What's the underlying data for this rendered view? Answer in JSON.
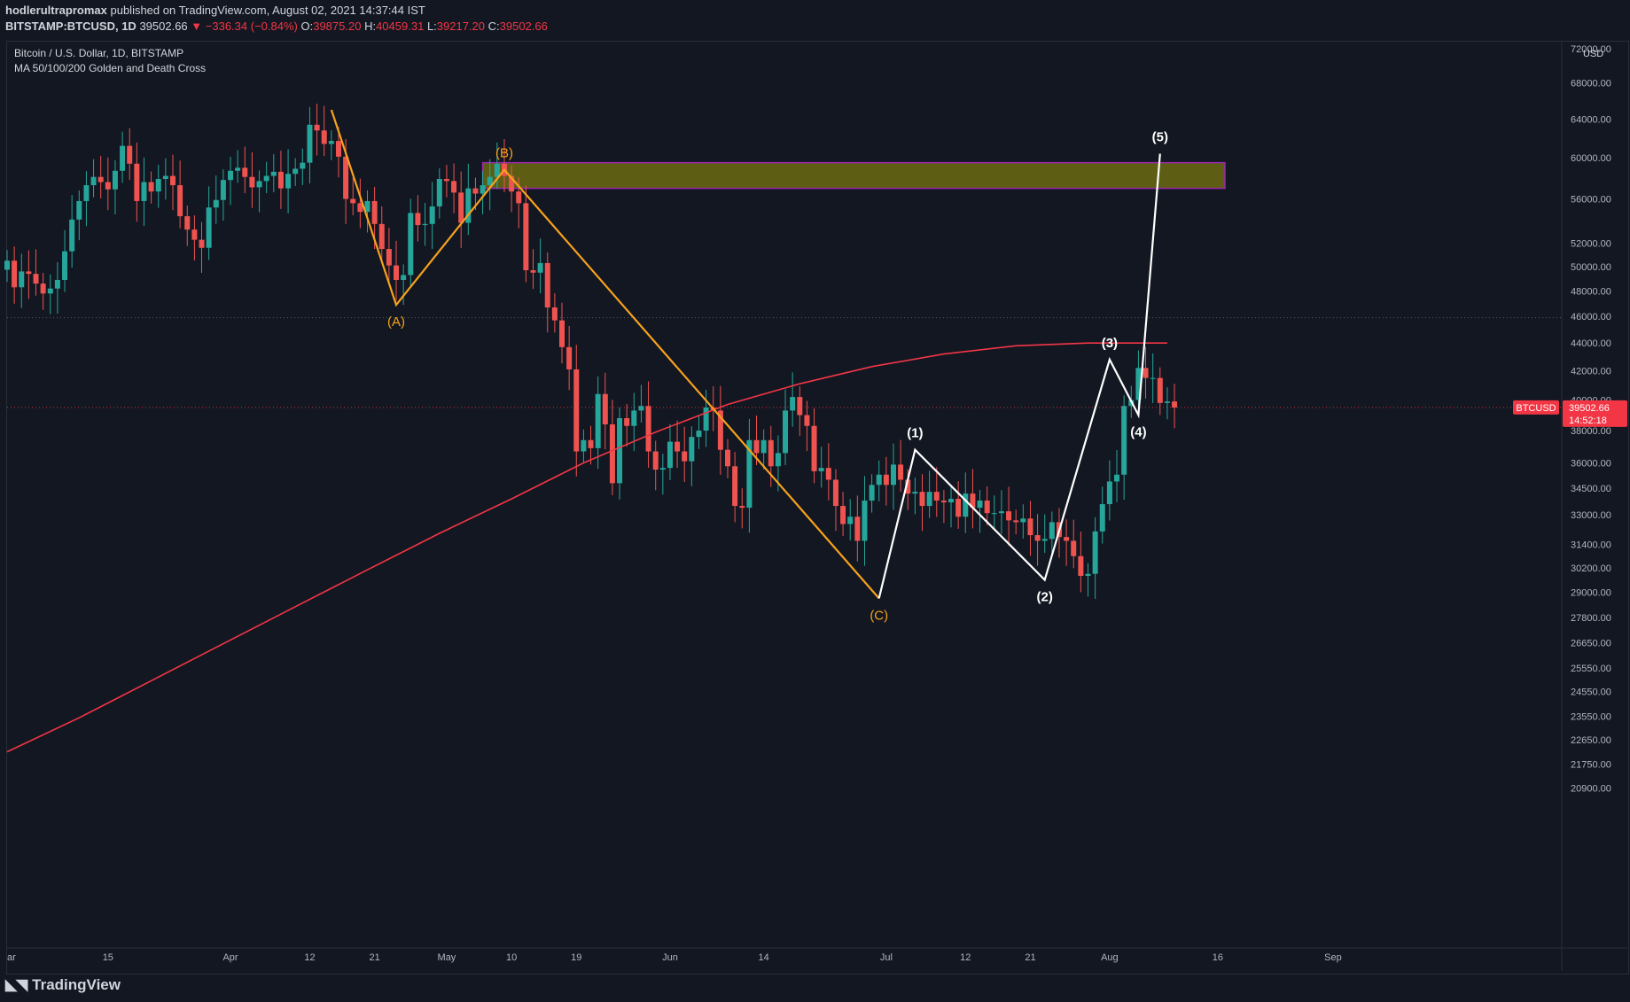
{
  "header": {
    "publisher": "hodlerultrapromax",
    "published_text": "published on TradingView.com, August 02, 2021 14:37:44 IST",
    "symbol": "BITSTAMP:BTCUSD, 1D",
    "last": "39502.66",
    "change": "▼ −336.34 (−0.84%)",
    "open_label": "O:",
    "open": "39875.20",
    "high_label": "H:",
    "high": "40459.31",
    "low_label": "L:",
    "low": "39217.20",
    "close_label": "C:",
    "close": "39502.66"
  },
  "footer": {
    "brand": "TradingView",
    "brand_icon": "tradingview-logo-icon"
  },
  "chart_data": {
    "type": "candlestick",
    "title": "Bitcoin / U.S. Dollar, 1D, BITSTAMP",
    "subtitle": "MA 50/100/200 Golden and Death Cross",
    "currency": "USD",
    "price_scale": "log",
    "colors": {
      "up": "#26a69a",
      "down": "#ef5350",
      "ma": "#f23645",
      "abc": "#f7a21b",
      "impulse": "#ffffff",
      "zone_fill": "#6b6b12",
      "zone_border": "#9c27b0",
      "price_tag": "#f23645"
    },
    "y_ticks": [
      "72000.00",
      "68000.00",
      "64000.00",
      "60000.00",
      "56000.00",
      "52000.00",
      "50000.00",
      "48000.00",
      "46000.00",
      "44000.00",
      "42000.00",
      "40000.00",
      "38000.00",
      "36000.00",
      "34500.00",
      "33000.00",
      "31400.00",
      "30200.00",
      "29000.00",
      "27800.00",
      "26650.00",
      "25550.00",
      "24550.00",
      "23550.00",
      "22650.00",
      "21750.00",
      "20900.00"
    ],
    "x_ticks": [
      {
        "label": "ar",
        "day": 0
      },
      {
        "label": "15",
        "day": 14
      },
      {
        "label": "Apr",
        "day": 31
      },
      {
        "label": "12",
        "day": 42
      },
      {
        "label": "21",
        "day": 51
      },
      {
        "label": "May",
        "day": 61
      },
      {
        "label": "10",
        "day": 70
      },
      {
        "label": "19",
        "day": 79
      },
      {
        "label": "Jun",
        "day": 92
      },
      {
        "label": "14",
        "day": 105
      },
      {
        "label": "Jul",
        "day": 122
      },
      {
        "label": "12",
        "day": 133
      },
      {
        "label": "21",
        "day": 142
      },
      {
        "label": "Aug",
        "day": 153
      },
      {
        "label": "16",
        "day": 168
      },
      {
        "label": "Sep",
        "day": 184
      }
    ],
    "candles_closes": [
      50500,
      48300,
      49600,
      49400,
      48600,
      47800,
      48200,
      48900,
      51300,
      54100,
      55800,
      57300,
      58100,
      57600,
      56900,
      58700,
      61200,
      59400,
      55800,
      57600,
      56700,
      57900,
      58200,
      57300,
      54400,
      53200,
      52300,
      51600,
      55200,
      55900,
      57800,
      58700,
      59000,
      58100,
      57100,
      57700,
      58200,
      58600,
      57000,
      58400,
      58900,
      59500,
      63400,
      62800,
      61400,
      61700,
      60100,
      56000,
      55600,
      54800,
      55800,
      53700,
      51500,
      50100,
      48900,
      49300,
      54700,
      53600,
      53700,
      55300,
      57900,
      57700,
      56600,
      53800,
      57000,
      56500,
      57300,
      58100,
      59400,
      58200,
      56700,
      55600,
      49700,
      49500,
      50300,
      46700,
      45700,
      43700,
      42100,
      36700,
      37400,
      36900,
      40400,
      38400,
      34800,
      38800,
      38300,
      39300,
      39600,
      36700,
      35600,
      35700,
      37300,
      36700,
      36100,
      37600,
      38000,
      39500,
      39300,
      36800,
      35800,
      33500,
      33400,
      37400,
      36600,
      37400,
      35800,
      36600,
      39300,
      40200,
      39000,
      38300,
      35500,
      35700,
      35000,
      33500,
      32500,
      32900,
      31600,
      33800,
      34700,
      35300,
      34700,
      35900,
      35000,
      34200,
      34300,
      33500,
      34300,
      33800,
      33700,
      33900,
      32900,
      34200,
      33400,
      33800,
      33100,
      33100,
      33200,
      32700,
      32600,
      32800,
      31900,
      31600,
      31700,
      32600,
      31800,
      31600,
      30800,
      29800,
      29900,
      32100,
      33600,
      34900,
      35300,
      39600,
      40000,
      42200,
      41500,
      41500,
      39800,
      39900,
      39500
    ],
    "ma_200": [
      {
        "day": 0,
        "price": 22200
      },
      {
        "day": 10,
        "price": 23500
      },
      {
        "day": 20,
        "price": 25000
      },
      {
        "day": 30,
        "price": 26600
      },
      {
        "day": 40,
        "price": 28300
      },
      {
        "day": 50,
        "price": 30100
      },
      {
        "day": 60,
        "price": 32000
      },
      {
        "day": 70,
        "price": 33900
      },
      {
        "day": 80,
        "price": 36000
      },
      {
        "day": 90,
        "price": 37900
      },
      {
        "day": 100,
        "price": 39700
      },
      {
        "day": 110,
        "price": 41100
      },
      {
        "day": 120,
        "price": 42300
      },
      {
        "day": 130,
        "price": 43200
      },
      {
        "day": 140,
        "price": 43800
      },
      {
        "day": 150,
        "price": 44000
      },
      {
        "day": 161,
        "price": 44000
      }
    ],
    "corrective_wave": [
      {
        "label": "",
        "day": 45,
        "price": 65000
      },
      {
        "label": "(A)",
        "day": 54,
        "price": 46900
      },
      {
        "label": "(B)",
        "day": 69,
        "price": 58800
      },
      {
        "label": "(C)",
        "day": 121,
        "price": 28700
      }
    ],
    "impulse_wave": [
      {
        "label": "",
        "day": 121,
        "price": 28700
      },
      {
        "label": "(1)",
        "day": 126,
        "price": 36800
      },
      {
        "label": "(2)",
        "day": 144,
        "price": 29600
      },
      {
        "label": "(3)",
        "day": 153,
        "price": 42800
      },
      {
        "label": "(4)",
        "day": 157,
        "price": 39000
      },
      {
        "label": "(5)",
        "day": 160,
        "price": 60400
      }
    ],
    "resistance_zone": {
      "day_start": 66,
      "day_end": 169,
      "price_low": 57000,
      "price_high": 59500
    },
    "last_price": "39502.66",
    "countdown": "14:52:18",
    "price_tag_symbol": "BTCUSD"
  }
}
